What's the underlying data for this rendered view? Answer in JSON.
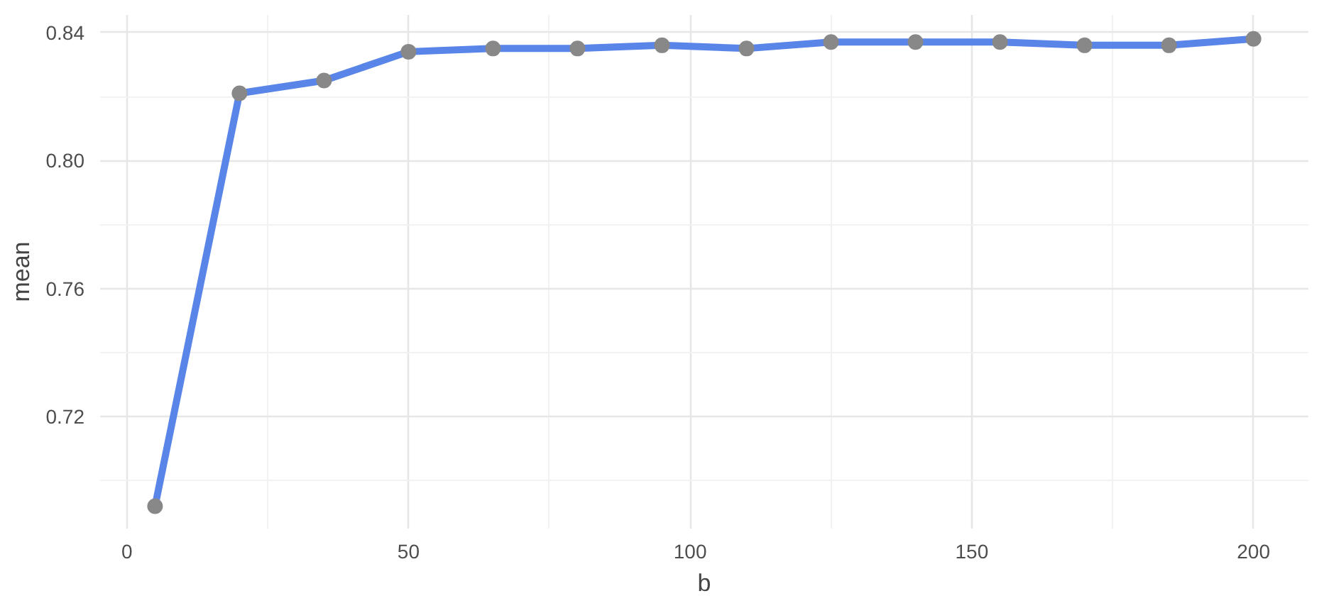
{
  "chart_data": {
    "type": "line",
    "xlabel": "b",
    "ylabel": "mean",
    "x": [
      5,
      20,
      35,
      50,
      65,
      80,
      95,
      110,
      125,
      140,
      155,
      170,
      185,
      200
    ],
    "series": [
      {
        "color": "#5a85e8",
        "values": [
          0.692,
          0.821,
          0.825,
          0.834,
          0.835,
          0.835,
          0.836,
          0.835,
          0.837,
          0.837,
          0.837,
          0.836,
          0.836,
          0.838
        ]
      }
    ],
    "xlim": [
      -4.75,
      209.75
    ],
    "ylim": [
      0.685,
      0.8455
    ],
    "xticks": [
      0,
      50,
      100,
      150,
      200
    ],
    "yticks": [
      0.72,
      0.76,
      {
        "value": 0.8,
        "label": "0.80"
      },
      0.84
    ],
    "grid": true,
    "marker": "circle",
    "line_style": "solid"
  }
}
